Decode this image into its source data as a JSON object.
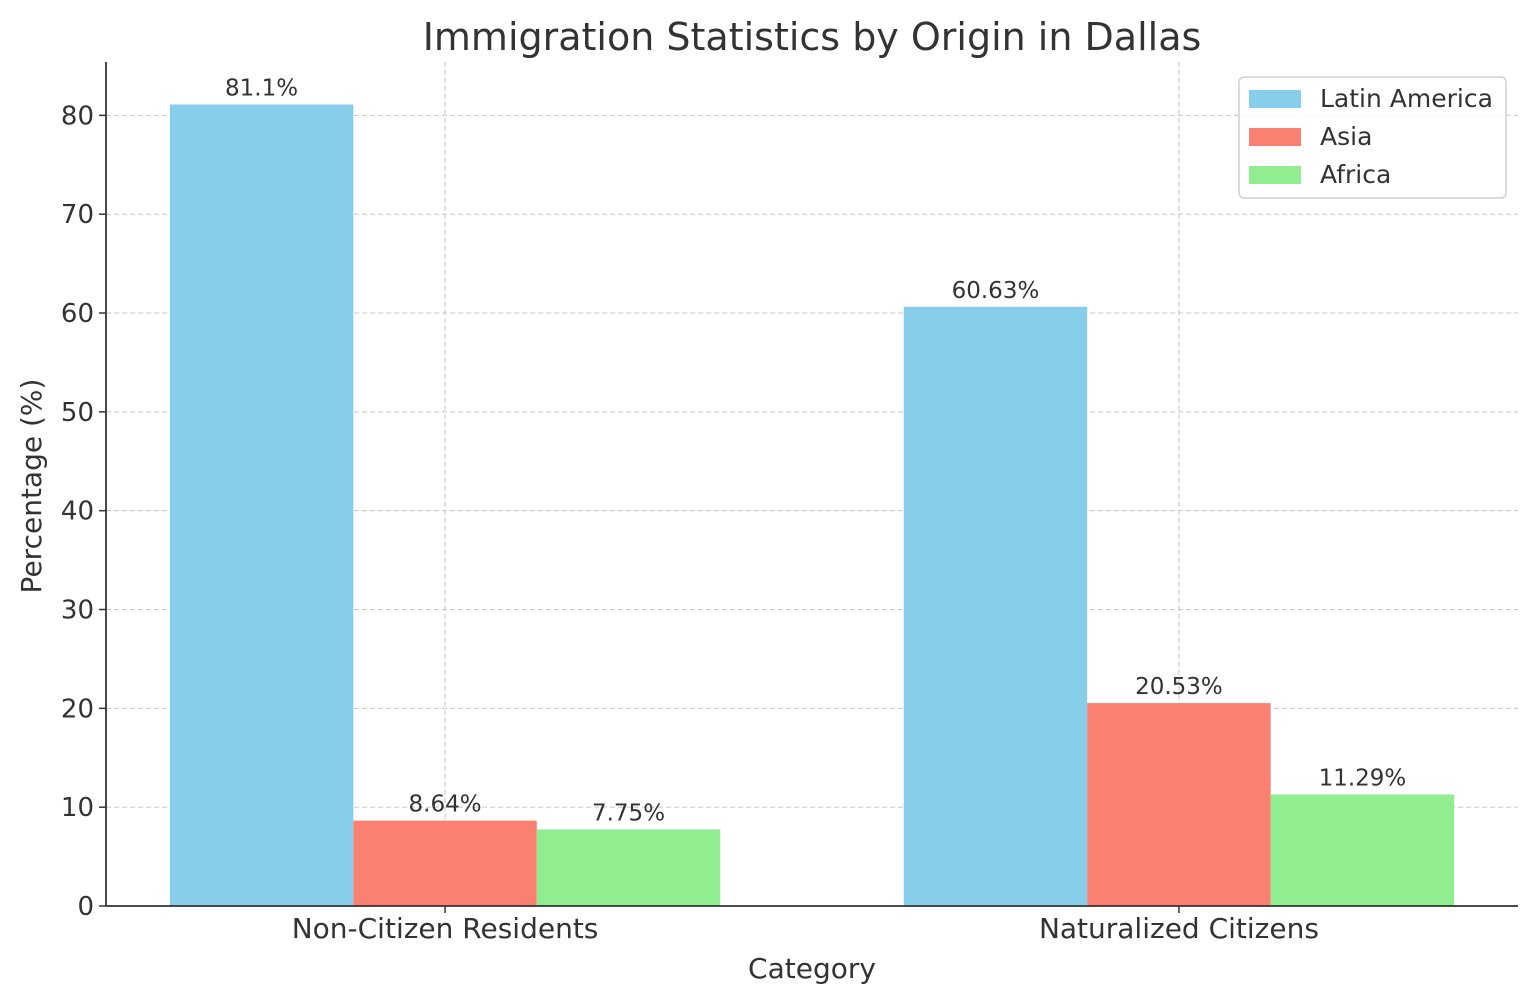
{
  "chart_data": {
    "type": "bar",
    "title": "Immigration Statistics by Origin in Dallas",
    "xlabel": "Category",
    "ylabel": "Percentage (%)",
    "categories": [
      "Non-Citizen Residents",
      "Naturalized Citizens"
    ],
    "series": [
      {
        "name": "Latin America",
        "values": [
          81.1,
          60.63
        ],
        "labels": [
          "81.1%",
          "60.63%"
        ],
        "color": "#87CEEB"
      },
      {
        "name": "Asia",
        "values": [
          8.64,
          20.53
        ],
        "labels": [
          "8.64%",
          "20.53%"
        ],
        "color": "#FA8072"
      },
      {
        "name": "Africa",
        "values": [
          7.75,
          11.29
        ],
        "labels": [
          "7.75%",
          "11.29%"
        ],
        "color": "#90EE90"
      }
    ],
    "ylim": [
      0,
      85.4
    ],
    "yticks": [
      "0",
      "10",
      "20",
      "30",
      "40",
      "50",
      "60",
      "70",
      "80"
    ],
    "grid": true,
    "legend": "top-right"
  }
}
